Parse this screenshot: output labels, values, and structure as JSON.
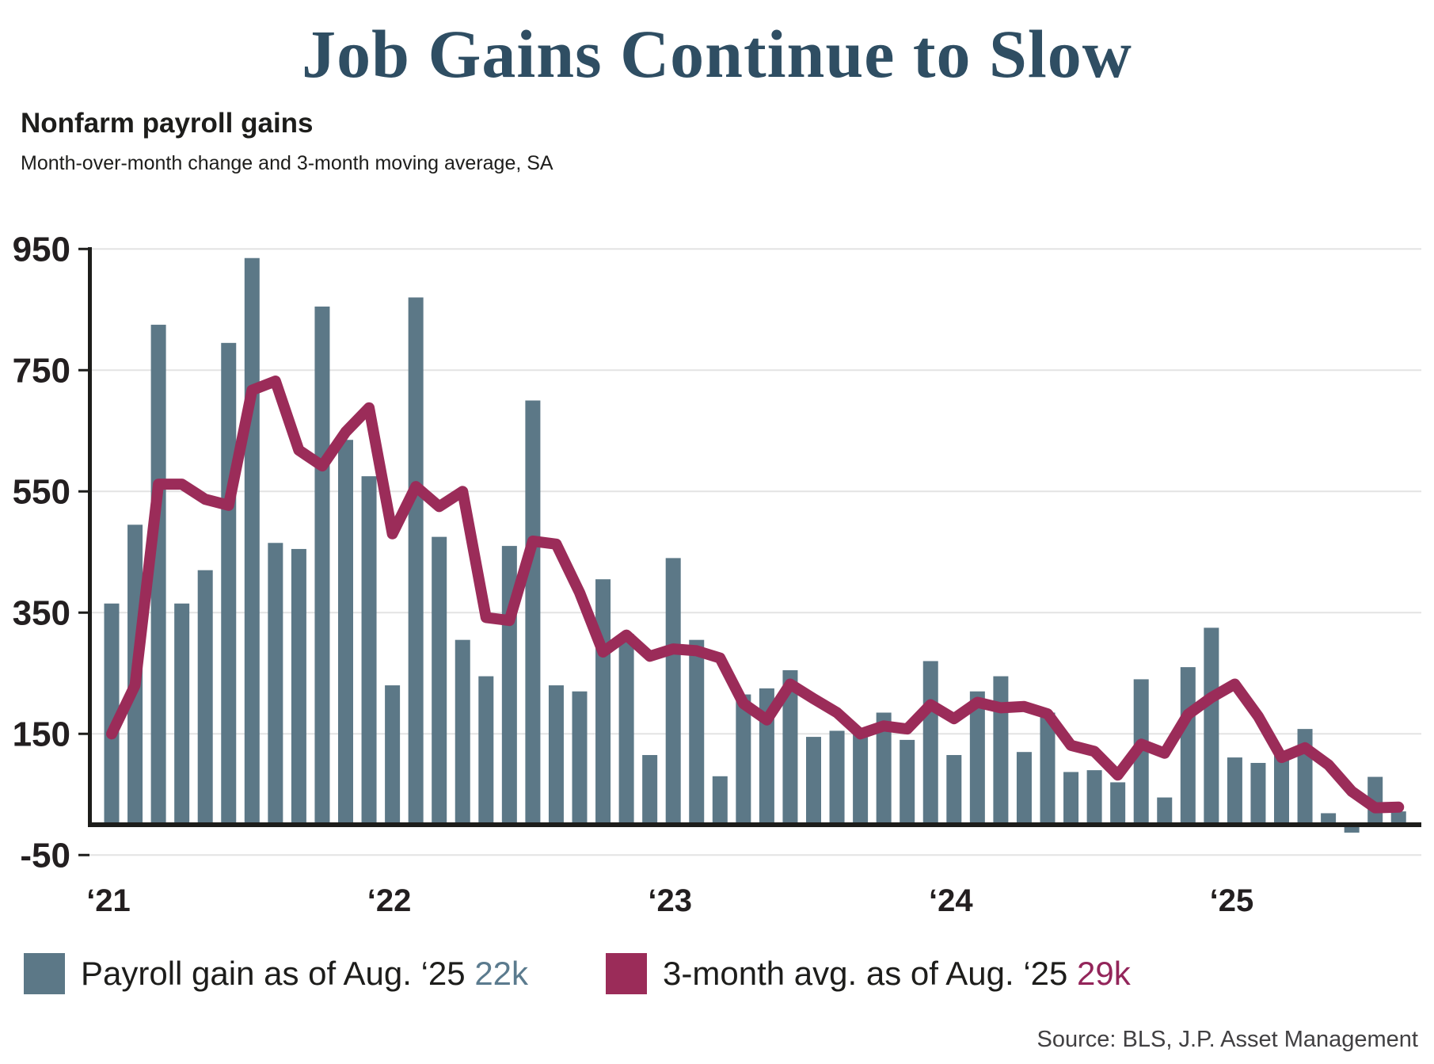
{
  "title": "Job Gains Continue to Slow",
  "subtitle": "Nonfarm payroll gains",
  "description": "Month-over-month change and 3-month moving average, SA",
  "source": "Source: BLS, J.P. Asset Management",
  "legend": {
    "bars_label": "Payroll gain as of Aug. ‘25 ",
    "bars_value": "22k",
    "line_label": "3-month avg. as of Aug. ‘25 ",
    "line_value": "29k"
  },
  "colors": {
    "title": "#2f4e63",
    "bar": "#5c7887",
    "line": "#9b2c59",
    "bar_value_text": "#5b7b8e",
    "line_value_text": "#93255a",
    "grid": "#e3e3e3",
    "axis": "#1d1d1b",
    "text": "#231f20"
  },
  "chart_data": {
    "type": "bar+line",
    "title": "Nonfarm payroll gains",
    "subtitle": "Month-over-month change and 3-month moving average, SA",
    "unit": "thousands of jobs, SA",
    "x": [
      "Jan 2021",
      "Feb 2021",
      "Mar 2021",
      "Apr 2021",
      "May 2021",
      "Jun 2021",
      "Jul 2021",
      "Aug 2021",
      "Sep 2021",
      "Oct 2021",
      "Nov 2021",
      "Dec 2021",
      "Jan 2022",
      "Feb 2022",
      "Mar 2022",
      "Apr 2022",
      "May 2022",
      "Jun 2022",
      "Jul 2022",
      "Aug 2022",
      "Sep 2022",
      "Oct 2022",
      "Nov 2022",
      "Dec 2022",
      "Jan 2023",
      "Feb 2023",
      "Mar 2023",
      "Apr 2023",
      "May 2023",
      "Jun 2023",
      "Jul 2023",
      "Aug 2023",
      "Sep 2023",
      "Oct 2023",
      "Nov 2023",
      "Dec 2023",
      "Jan 2024",
      "Feb 2024",
      "Mar 2024",
      "Apr 2024",
      "May 2024",
      "Jun 2024",
      "Jul 2024",
      "Aug 2024",
      "Sep 2024",
      "Oct 2024",
      "Nov 2024",
      "Dec 2024",
      "Jan 2025",
      "Feb 2025",
      "Mar 2025",
      "Apr 2025",
      "May 2025",
      "Jun 2025",
      "Jul 2025",
      "Aug 2025"
    ],
    "series": [
      {
        "name": "Payroll gain as of Aug. ‘25",
        "type": "bar",
        "values": [
          365,
          495,
          825,
          365,
          420,
          795,
          935,
          465,
          455,
          855,
          635,
          575,
          230,
          870,
          475,
          305,
          245,
          460,
          700,
          230,
          220,
          405,
          315,
          115,
          440,
          305,
          80,
          215,
          225,
          255,
          145,
          155,
          150,
          185,
          140,
          270,
          115,
          220,
          245,
          120,
          185,
          87,
          90,
          70,
          240,
          45,
          260,
          325,
          111,
          102,
          120,
          158,
          19,
          -13,
          79,
          22
        ]
      },
      {
        "name": "3-month avg. as of Aug. ‘25",
        "type": "line",
        "values": [
          150,
          230,
          562,
          562,
          537,
          527,
          717,
          732,
          618,
          592,
          648,
          688,
          480,
          558,
          525,
          550,
          342,
          337,
          468,
          463,
          383,
          285,
          313,
          278,
          290,
          287,
          275,
          200,
          173,
          232,
          208,
          185,
          150,
          163,
          158,
          198,
          175,
          202,
          193,
          195,
          183,
          131,
          121,
          82,
          133,
          118,
          182,
          210,
          232,
          179,
          111,
          127,
          99,
          55,
          28,
          29
        ]
      }
    ],
    "ylim": [
      -50,
      950
    ],
    "yticks": [
      950,
      750,
      550,
      350,
      150,
      -50
    ],
    "xticks": [
      "‘21",
      "‘22",
      "‘23",
      "‘24",
      "‘25"
    ],
    "grid": true,
    "legend_position": "bottom",
    "latest_bar_value": "22k",
    "latest_avg_value": "29k"
  }
}
